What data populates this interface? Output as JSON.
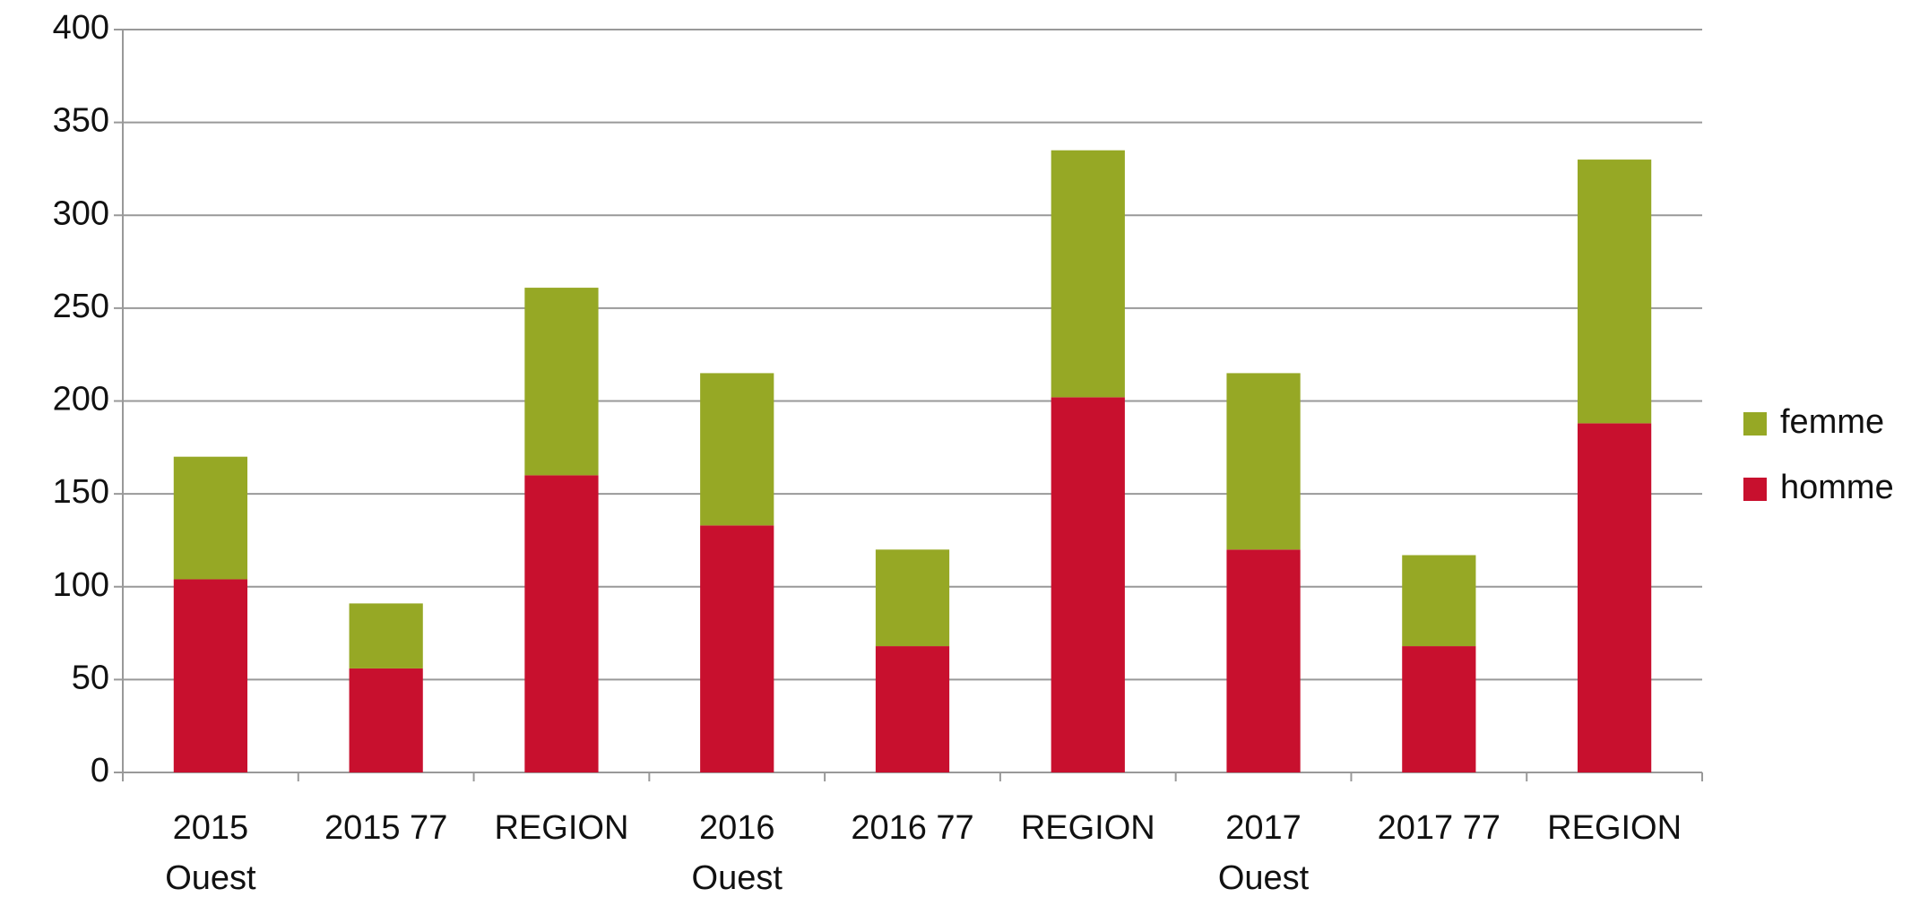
{
  "chart_data": {
    "type": "stacked_bar",
    "categories": [
      [
        "2015",
        "Ouest"
      ],
      [
        "2015 77"
      ],
      [
        "REGION"
      ],
      [
        "2016",
        "Ouest"
      ],
      [
        "2016 77"
      ],
      [
        "REGION"
      ],
      [
        "2017",
        "Ouest"
      ],
      [
        "2017 77"
      ],
      [
        "REGION"
      ]
    ],
    "series": [
      {
        "name": "homme",
        "color": "#c8102e",
        "values": [
          104,
          56,
          160,
          133,
          68,
          202,
          120,
          68,
          188
        ]
      },
      {
        "name": "femme",
        "color": "#96a825",
        "values": [
          66,
          35,
          101,
          82,
          52,
          133,
          95,
          49,
          142
        ]
      }
    ],
    "ylim": [
      0,
      400
    ],
    "yticks": [
      0,
      50,
      100,
      150,
      200,
      250,
      300,
      350,
      400
    ],
    "grid": true,
    "legend": "right"
  }
}
